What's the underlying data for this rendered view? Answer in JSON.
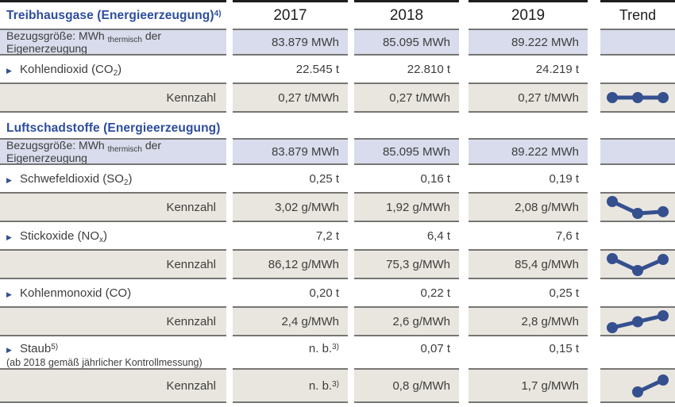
{
  "header": {
    "years": [
      "2017",
      "2018",
      "2019"
    ],
    "trend_label": "Trend"
  },
  "colors": {
    "section_title_blue": "#2d4d9e",
    "trend_line_navy": "#35508f",
    "reference_row_bg": "#d8dcec",
    "kennzahl_row_bg": "#e9e6df",
    "border_gray": "#767674",
    "border_black": "#1d1d1b",
    "text": "#3d3d3c"
  },
  "sections": [
    {
      "id": "treibhausgase",
      "title": [
        {
          "t": "Treibhausgase (Energieerzeugung)"
        },
        {
          "t": "4)",
          "f": "sup"
        }
      ],
      "rows": [
        {
          "id": "bezugsgroesse-1",
          "type": "reference",
          "label": [
            {
              "t": "Bezugsgröße: MWh "
            },
            {
              "t": "thermisch",
              "f": "sub"
            },
            {
              "t": " der Eigenerzeugung"
            }
          ],
          "values": [
            "83.879 MWh",
            "85.095 MWh",
            "89.222 MWh"
          ]
        },
        {
          "id": "kohlendioxid",
          "type": "pollutant",
          "label": [
            {
              "t": "Kohlendioxid (CO"
            },
            {
              "t": "2",
              "f": "sub"
            },
            {
              "t": ")"
            }
          ],
          "values": [
            "22.545 t",
            "22.810 t",
            "24.219 t"
          ]
        },
        {
          "id": "kennzahl-kohlendioxid",
          "type": "kennzahl",
          "label": "Kennzahl",
          "values": [
            "0,27 t/MWh",
            "0,27 t/MWh",
            "0,27 t/MWh"
          ],
          "chart": 0
        }
      ]
    },
    {
      "id": "luftschadstoffe",
      "title": [
        {
          "t": "Luftschadstoffe (Energieerzeugung)"
        }
      ],
      "rows": [
        {
          "id": "bezugsgroesse-2",
          "type": "reference",
          "label": [
            {
              "t": "Bezugsgröße: MWh "
            },
            {
              "t": "thermisch",
              "f": "sub"
            },
            {
              "t": " der Eigenerzeugung"
            }
          ],
          "values": [
            "83.879 MWh",
            "85.095 MWh",
            "89.222 MWh"
          ]
        },
        {
          "id": "schwefeldioxid",
          "type": "pollutant",
          "label": [
            {
              "t": "Schwefeldioxid (SO"
            },
            {
              "t": "2",
              "f": "sub"
            },
            {
              "t": ")"
            }
          ],
          "values": [
            "0,25 t",
            "0,16 t",
            "0,19 t"
          ]
        },
        {
          "id": "kennzahl-schwefeldioxid",
          "type": "kennzahl",
          "label": "Kennzahl",
          "values": [
            "3,02 g/MWh",
            "1,92 g/MWh",
            "2,08 g/MWh"
          ],
          "chart": 1
        },
        {
          "id": "stickoxide",
          "type": "pollutant",
          "label": [
            {
              "t": "Stickoxide (NO"
            },
            {
              "t": "x",
              "f": "sub"
            },
            {
              "t": ")"
            }
          ],
          "values": [
            "7,2 t",
            "6,4 t",
            "7,6 t"
          ]
        },
        {
          "id": "kennzahl-stickoxide",
          "type": "kennzahl",
          "label": "Kennzahl",
          "values": [
            "86,12 g/MWh",
            "75,3 g/MWh",
            "85,4 g/MWh"
          ],
          "chart": 2
        },
        {
          "id": "kohlenmonoxid",
          "type": "pollutant",
          "label": [
            {
              "t": "Kohlenmonoxid (CO)"
            }
          ],
          "values": [
            "0,20 t",
            "0,22 t",
            "0,25 t"
          ]
        },
        {
          "id": "kennzahl-kohlenmonoxid",
          "type": "kennzahl",
          "label": "Kennzahl",
          "values": [
            "2,4 g/MWh",
            "2,6 g/MWh",
            "2,8 g/MWh"
          ],
          "chart": 3
        },
        {
          "id": "staub",
          "type": "pollutant",
          "tall": true,
          "label": [
            {
              "t": "Staub"
            },
            {
              "t": "5)",
              "f": "sup"
            }
          ],
          "note": "(ab 2018 gemäß jährlicher Kontrollmessung)",
          "values": [
            [
              {
                "t": "n. b."
              },
              {
                "t": "3)",
                "f": "sup"
              }
            ],
            "0,07 t",
            "0,15 t"
          ]
        },
        {
          "id": "kennzahl-staub",
          "type": "kennzahl",
          "tall": true,
          "label": "Kennzahl",
          "values": [
            [
              {
                "t": "n. b."
              },
              {
                "t": "3)",
                "f": "sup"
              }
            ],
            "0,8 g/MWh",
            "1,7 g/MWh"
          ],
          "chart": 4
        }
      ]
    }
  ],
  "chart_data": [
    {
      "type": "line",
      "name": "Kennzahl Kohlendioxid",
      "unit": "t/MWh",
      "x": [
        2017,
        2018,
        2019
      ],
      "values": [
        0.27,
        0.27,
        0.27
      ]
    },
    {
      "type": "line",
      "name": "Kennzahl Schwefeldioxid",
      "unit": "g/MWh",
      "x": [
        2017,
        2018,
        2019
      ],
      "values": [
        3.02,
        1.92,
        2.08
      ]
    },
    {
      "type": "line",
      "name": "Kennzahl Stickoxide",
      "unit": "g/MWh",
      "x": [
        2017,
        2018,
        2019
      ],
      "values": [
        86.12,
        75.3,
        85.4
      ]
    },
    {
      "type": "line",
      "name": "Kennzahl Kohlenmonoxid",
      "unit": "g/MWh",
      "x": [
        2017,
        2018,
        2019
      ],
      "values": [
        2.4,
        2.6,
        2.8
      ]
    },
    {
      "type": "line",
      "name": "Kennzahl Staub",
      "unit": "g/MWh",
      "x": [
        2018,
        2019
      ],
      "values": [
        0.8,
        1.7
      ]
    }
  ]
}
